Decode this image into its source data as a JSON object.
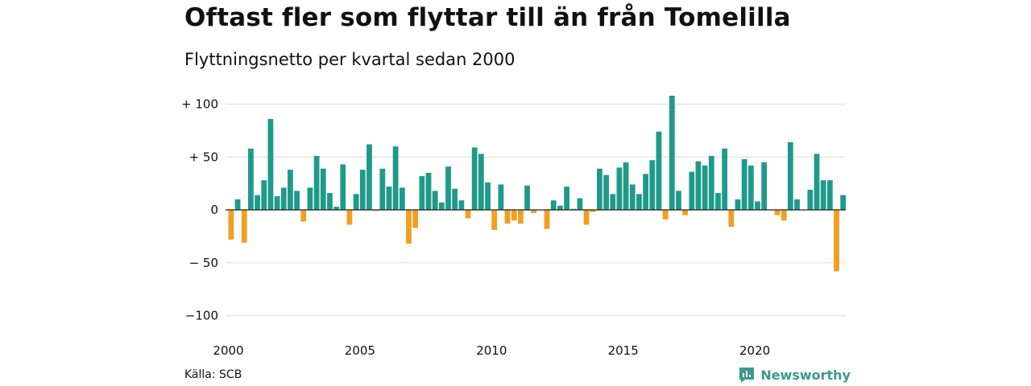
{
  "header": {
    "title": "Oftast fler som flyttar till än från Tomelilla",
    "subtitle": "Flyttningsnetto per kvartal sedan 2000"
  },
  "footer": {
    "source": "Källa: SCB",
    "brand": "Newsworthy"
  },
  "colors": {
    "positive": "#1f9a8a",
    "negative": "#f0a020",
    "grid": "#dddddd",
    "axis": "#222222",
    "brand": "#3a9a8c"
  },
  "chart_data": {
    "type": "bar",
    "title": "Oftast fler som flyttar till än från Tomelilla",
    "subtitle": "Flyttningsnetto per kvartal sedan 2000",
    "xlabel": "",
    "ylabel": "",
    "ylim": [
      -100,
      110
    ],
    "y_ticks": [
      {
        "value": 100,
        "label": "+ 100"
      },
      {
        "value": 50,
        "label": "+  50"
      },
      {
        "value": 0,
        "label": "0"
      },
      {
        "value": -50,
        "label": "− 50"
      },
      {
        "value": -100,
        "label": "−100"
      }
    ],
    "x_ticks": [
      {
        "year": 2000,
        "label": "2000"
      },
      {
        "year": 2005,
        "label": "2005"
      },
      {
        "year": 2010,
        "label": "2010"
      },
      {
        "year": 2015,
        "label": "2015"
      },
      {
        "year": 2020,
        "label": "2020"
      }
    ],
    "grid": true,
    "legend": "none",
    "start_year": 2000,
    "categories": [
      "2000 K1",
      "2000 K2",
      "2000 K3",
      "2000 K4",
      "2001 K1",
      "2001 K2",
      "2001 K3",
      "2001 K4",
      "2002 K1",
      "2002 K2",
      "2002 K3",
      "2002 K4",
      "2003 K1",
      "2003 K2",
      "2003 K3",
      "2003 K4",
      "2004 K1",
      "2004 K2",
      "2004 K3",
      "2004 K4",
      "2005 K1",
      "2005 K2",
      "2005 K3",
      "2005 K4",
      "2006 K1",
      "2006 K2",
      "2006 K3",
      "2006 K4",
      "2007 K1",
      "2007 K2",
      "2007 K3",
      "2007 K4",
      "2008 K1",
      "2008 K2",
      "2008 K3",
      "2008 K4",
      "2009 K1",
      "2009 K2",
      "2009 K3",
      "2009 K4",
      "2010 K1",
      "2010 K2",
      "2010 K3",
      "2010 K4",
      "2011 K1",
      "2011 K2",
      "2011 K3",
      "2011 K4",
      "2012 K1",
      "2012 K2",
      "2012 K3",
      "2012 K4",
      "2013 K1",
      "2013 K2",
      "2013 K3",
      "2013 K4",
      "2014 K1",
      "2014 K2",
      "2014 K3",
      "2014 K4",
      "2015 K1",
      "2015 K2",
      "2015 K3",
      "2015 K4",
      "2016 K1",
      "2016 K2",
      "2016 K3",
      "2016 K4",
      "2017 K1",
      "2017 K2",
      "2017 K3",
      "2017 K4",
      "2018 K1",
      "2018 K2",
      "2018 K3",
      "2018 K4",
      "2019 K1",
      "2019 K2",
      "2019 K3",
      "2019 K4",
      "2020 K1",
      "2020 K2",
      "2020 K3",
      "2020 K4",
      "2021 K1",
      "2021 K2",
      "2021 K3",
      "2021 K4",
      "2022 K1",
      "2022 K2",
      "2022 K3",
      "2022 K4",
      "2023 K1",
      "2023 K2"
    ],
    "values": [
      -28,
      10,
      -31,
      58,
      14,
      28,
      86,
      13,
      21,
      38,
      18,
      -11,
      21,
      51,
      39,
      16,
      3,
      43,
      -14,
      15,
      38,
      62,
      -1,
      39,
      22,
      60,
      21,
      -32,
      -17,
      32,
      35,
      18,
      7,
      41,
      20,
      9,
      -8,
      59,
      53,
      26,
      -19,
      24,
      -13,
      -10,
      -13,
      23,
      -3,
      0,
      -18,
      9,
      4,
      22,
      1,
      11,
      -14,
      -2,
      39,
      33,
      15,
      40,
      45,
      24,
      15,
      34,
      47,
      74,
      -9,
      108,
      18,
      -5,
      36,
      46,
      42,
      51,
      16,
      58,
      -16,
      10,
      48,
      42,
      8,
      45,
      0,
      -5,
      -10,
      64,
      10,
      0,
      19,
      53,
      28,
      28,
      -58,
      14
    ]
  }
}
